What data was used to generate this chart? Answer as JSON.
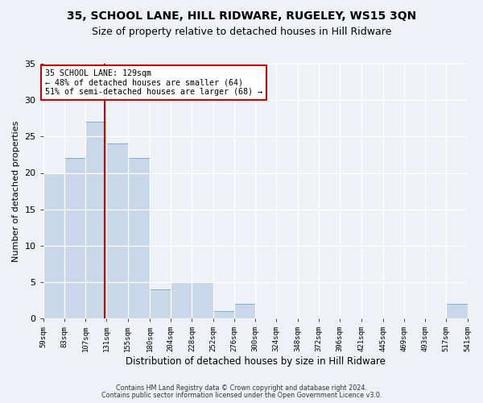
{
  "title": "35, SCHOOL LANE, HILL RIDWARE, RUGELEY, WS15 3QN",
  "subtitle": "Size of property relative to detached houses in Hill Ridware",
  "xlabel": "Distribution of detached houses by size in Hill Ridware",
  "ylabel": "Number of detached properties",
  "bar_color": "#c8d8ea",
  "bar_edge_color": "#7aafd4",
  "bins": [
    59,
    83,
    107,
    131,
    155,
    180,
    204,
    228,
    252,
    276,
    300,
    324,
    348,
    372,
    396,
    421,
    445,
    469,
    493,
    517,
    541
  ],
  "counts": [
    20,
    22,
    27,
    24,
    22,
    4,
    5,
    5,
    1,
    2,
    0,
    0,
    0,
    0,
    0,
    0,
    0,
    0,
    0,
    2
  ],
  "vline_x": 129,
  "vline_color": "#cc0000",
  "annotation_text": "35 SCHOOL LANE: 129sqm\n← 48% of detached houses are smaller (64)\n51% of semi-detached houses are larger (68) →",
  "annotation_box_color": "white",
  "annotation_box_edge_color": "#cc0000",
  "ylim": [
    0,
    35
  ],
  "yticks": [
    0,
    5,
    10,
    15,
    20,
    25,
    30,
    35
  ],
  "footer1": "Contains HM Land Registry data © Crown copyright and database right 2024.",
  "footer2": "Contains public sector information licensed under the Open Government Licence v3.0.",
  "background_color": "#eef2f7",
  "grid_color": "#ffffff",
  "title_fontsize": 10,
  "subtitle_fontsize": 9
}
